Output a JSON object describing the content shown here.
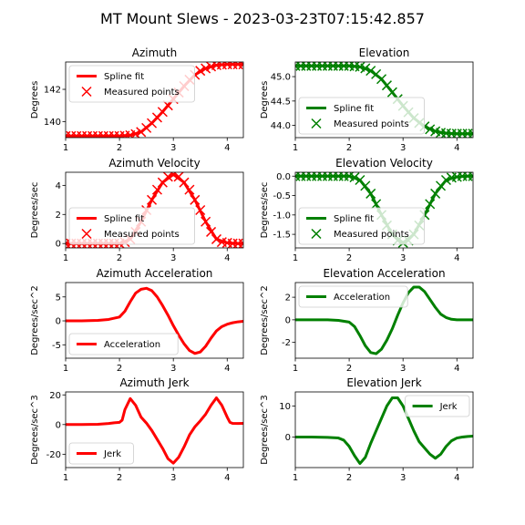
{
  "figure_title": "MT Mount Slews - 2023-03-23T07:15:42.857",
  "colors": {
    "azimuth": "#ff0000",
    "elevation": "#008000"
  },
  "chart_data": [
    {
      "type": "line",
      "title": "Azimuth",
      "ylabel": "Degrees",
      "xlim": [
        1,
        4.3
      ],
      "ylim": [
        139.0,
        143.7
      ],
      "xticks": [
        1,
        2,
        3,
        4
      ],
      "yticks": [
        140,
        142
      ],
      "legend": "upper-left",
      "series": [
        {
          "name": "Spline fit",
          "color": "#ff0000",
          "style": "line",
          "x": [
            1.0,
            1.5,
            2.0,
            2.2,
            2.4,
            2.6,
            2.8,
            3.0,
            3.2,
            3.4,
            3.6,
            3.8,
            4.0,
            4.2,
            4.3
          ],
          "y": [
            139.1,
            139.1,
            139.1,
            139.15,
            139.35,
            139.9,
            140.6,
            141.4,
            142.2,
            142.9,
            143.3,
            143.5,
            143.55,
            143.55,
            143.55
          ]
        },
        {
          "name": "Measured points",
          "color": "#ff0000",
          "style": "x",
          "x": [
            1.0,
            1.1,
            1.2,
            1.3,
            1.4,
            1.5,
            1.6,
            1.7,
            1.8,
            1.9,
            2.0,
            2.1,
            2.2,
            2.3,
            2.4,
            2.5,
            2.6,
            2.7,
            2.8,
            2.9,
            3.0,
            3.1,
            3.2,
            3.3,
            3.4,
            3.5,
            3.6,
            3.7,
            3.8,
            3.9,
            4.0,
            4.1,
            4.2,
            4.3
          ],
          "y": [
            139.1,
            139.1,
            139.1,
            139.1,
            139.1,
            139.1,
            139.1,
            139.1,
            139.1,
            139.1,
            139.1,
            139.12,
            139.15,
            139.22,
            139.35,
            139.6,
            139.9,
            140.25,
            140.6,
            141.0,
            141.4,
            141.8,
            142.2,
            142.6,
            142.9,
            143.15,
            143.3,
            143.42,
            143.5,
            143.53,
            143.55,
            143.55,
            143.55,
            143.55
          ]
        }
      ]
    },
    {
      "type": "line",
      "title": "Elevation",
      "ylabel": "Degrees",
      "xlim": [
        1,
        4.3
      ],
      "ylim": [
        43.75,
        45.3
      ],
      "xticks": [
        1,
        2,
        3,
        4
      ],
      "yticks": [
        44.0,
        44.5,
        45.0
      ],
      "legend": "lower-left",
      "series": [
        {
          "name": "Spline fit",
          "color": "#008000",
          "style": "line",
          "x": [
            1.0,
            1.5,
            2.0,
            2.2,
            2.4,
            2.6,
            2.8,
            3.0,
            3.2,
            3.4,
            3.6,
            3.8,
            4.0,
            4.3
          ],
          "y": [
            45.22,
            45.22,
            45.22,
            45.2,
            45.12,
            44.95,
            44.68,
            44.4,
            44.15,
            43.98,
            43.88,
            43.84,
            43.83,
            43.83
          ]
        },
        {
          "name": "Measured points",
          "color": "#008000",
          "style": "x",
          "x": [
            1.0,
            1.1,
            1.2,
            1.3,
            1.4,
            1.5,
            1.6,
            1.7,
            1.8,
            1.9,
            2.0,
            2.1,
            2.2,
            2.3,
            2.4,
            2.5,
            2.6,
            2.7,
            2.8,
            2.9,
            3.0,
            3.1,
            3.2,
            3.3,
            3.4,
            3.5,
            3.6,
            3.7,
            3.8,
            3.9,
            4.0,
            4.1,
            4.2,
            4.3
          ],
          "y": [
            45.22,
            45.22,
            45.22,
            45.22,
            45.22,
            45.22,
            45.22,
            45.22,
            45.22,
            45.22,
            45.22,
            45.21,
            45.2,
            45.17,
            45.12,
            45.05,
            44.95,
            44.82,
            44.68,
            44.54,
            44.4,
            44.27,
            44.15,
            44.05,
            43.98,
            43.92,
            43.88,
            43.85,
            43.84,
            43.83,
            43.83,
            43.83,
            43.83,
            43.83
          ]
        }
      ]
    },
    {
      "type": "line",
      "title": "Azimuth Velocity",
      "ylabel": "Degrees/sec",
      "xlim": [
        1,
        4.3
      ],
      "ylim": [
        -0.3,
        4.9
      ],
      "xticks": [
        1,
        2,
        3,
        4
      ],
      "yticks": [
        0,
        2,
        4
      ],
      "legend": "lower-left",
      "series": [
        {
          "name": "Spline fit",
          "color": "#ff0000",
          "style": "line",
          "x": [
            1.0,
            1.5,
            2.0,
            2.2,
            2.4,
            2.6,
            2.8,
            3.0,
            3.2,
            3.4,
            3.6,
            3.8,
            4.0,
            4.2,
            4.3
          ],
          "y": [
            0,
            0,
            0,
            0.3,
            1.5,
            3.0,
            4.2,
            4.75,
            4.2,
            3.0,
            1.5,
            0.3,
            0.05,
            0,
            0
          ]
        },
        {
          "name": "Measured points",
          "color": "#ff0000",
          "style": "x",
          "x": [
            1.0,
            1.1,
            1.2,
            1.3,
            1.4,
            1.5,
            1.6,
            1.7,
            1.8,
            1.9,
            2.0,
            2.1,
            2.2,
            2.3,
            2.4,
            2.5,
            2.6,
            2.7,
            2.8,
            2.9,
            3.0,
            3.1,
            3.2,
            3.3,
            3.4,
            3.5,
            3.6,
            3.7,
            3.8,
            3.9,
            4.0,
            4.1,
            4.2,
            4.3
          ],
          "y": [
            0,
            0,
            0,
            0,
            0,
            0,
            0,
            0,
            0,
            0,
            0,
            0.1,
            0.3,
            0.8,
            1.5,
            2.3,
            3.0,
            3.7,
            4.2,
            4.6,
            4.75,
            4.6,
            4.2,
            3.7,
            3.0,
            2.3,
            1.5,
            0.8,
            0.3,
            0.1,
            0.05,
            0,
            0,
            0
          ]
        }
      ]
    },
    {
      "type": "line",
      "title": "Elevation Velocity",
      "ylabel": "Degrees/sec",
      "xlim": [
        1,
        4.3
      ],
      "ylim": [
        -1.85,
        0.1
      ],
      "xticks": [
        1,
        2,
        3,
        4
      ],
      "yticks": [
        0.0,
        -0.5,
        -1.0,
        -1.5
      ],
      "legend": "lower-left",
      "series": [
        {
          "name": "Spline fit",
          "color": "#008000",
          "style": "line",
          "x": [
            1.0,
            1.5,
            2.0,
            2.2,
            2.4,
            2.6,
            2.8,
            3.0,
            3.2,
            3.4,
            3.6,
            3.8,
            4.0,
            4.2,
            4.3
          ],
          "y": [
            0,
            0,
            0,
            -0.1,
            -0.45,
            -1.0,
            -1.5,
            -1.72,
            -1.5,
            -1.0,
            -0.45,
            -0.1,
            -0.02,
            0,
            0
          ]
        },
        {
          "name": "Measured points",
          "color": "#008000",
          "style": "x",
          "x": [
            1.0,
            1.1,
            1.2,
            1.3,
            1.4,
            1.5,
            1.6,
            1.7,
            1.8,
            1.9,
            2.0,
            2.1,
            2.2,
            2.3,
            2.4,
            2.5,
            2.6,
            2.7,
            2.8,
            2.9,
            3.0,
            3.1,
            3.2,
            3.3,
            3.4,
            3.5,
            3.6,
            3.7,
            3.8,
            3.9,
            4.0,
            4.1,
            4.2,
            4.3
          ],
          "y": [
            0,
            0,
            0,
            0,
            0,
            0,
            0,
            0,
            0,
            0,
            0,
            -0.03,
            -0.1,
            -0.25,
            -0.45,
            -0.72,
            -1.0,
            -1.27,
            -1.5,
            -1.66,
            -1.72,
            -1.66,
            -1.5,
            -1.27,
            -1.0,
            -0.72,
            -0.45,
            -0.25,
            -0.1,
            -0.04,
            -0.02,
            0,
            0,
            0
          ]
        }
      ]
    },
    {
      "type": "line",
      "title": "Azimuth Acceleration",
      "ylabel": "Degrees/sec^2",
      "xlim": [
        1,
        4.3
      ],
      "ylim": [
        -7.8,
        8.0
      ],
      "xticks": [
        1,
        2,
        3,
        4
      ],
      "yticks": [
        -5,
        0,
        5
      ],
      "legend": "lower-left",
      "series": [
        {
          "name": "Acceleration",
          "color": "#ff0000",
          "style": "line",
          "x": [
            1.0,
            1.3,
            1.6,
            1.8,
            2.0,
            2.1,
            2.2,
            2.3,
            2.4,
            2.5,
            2.6,
            2.7,
            2.8,
            2.9,
            3.0,
            3.1,
            3.2,
            3.3,
            3.4,
            3.5,
            3.6,
            3.7,
            3.8,
            3.9,
            4.0,
            4.1,
            4.2,
            4.3
          ],
          "y": [
            0,
            0,
            0.1,
            0.3,
            0.8,
            2.0,
            4.0,
            5.8,
            6.6,
            6.8,
            6.3,
            5.0,
            3.2,
            1.2,
            -1.0,
            -3.0,
            -4.8,
            -6.2,
            -6.8,
            -6.5,
            -5.3,
            -3.6,
            -2.1,
            -1.2,
            -0.7,
            -0.4,
            -0.2,
            -0.1
          ]
        }
      ]
    },
    {
      "type": "line",
      "title": "Elevation Acceleration",
      "ylabel": "Degrees/sec^2",
      "xlim": [
        1,
        4.3
      ],
      "ylim": [
        -3.4,
        3.3
      ],
      "xticks": [
        1,
        2,
        3,
        4
      ],
      "yticks": [
        -2,
        0,
        2
      ],
      "legend": "upper-left",
      "series": [
        {
          "name": "Acceleration",
          "color": "#008000",
          "style": "line",
          "x": [
            1.0,
            1.3,
            1.6,
            1.8,
            2.0,
            2.1,
            2.2,
            2.3,
            2.4,
            2.5,
            2.6,
            2.7,
            2.8,
            2.9,
            3.0,
            3.1,
            3.2,
            3.3,
            3.4,
            3.5,
            3.6,
            3.7,
            3.8,
            3.9,
            4.0,
            4.1,
            4.2,
            4.3
          ],
          "y": [
            0,
            0,
            0,
            -0.05,
            -0.2,
            -0.6,
            -1.4,
            -2.3,
            -2.9,
            -3.0,
            -2.6,
            -1.8,
            -0.8,
            0.4,
            1.5,
            2.4,
            2.9,
            2.9,
            2.5,
            1.8,
            1.1,
            0.5,
            0.2,
            0.05,
            0,
            0,
            0,
            0
          ]
        }
      ]
    },
    {
      "type": "line",
      "title": "Azimuth Jerk",
      "ylabel": "Degrees/sec^3",
      "xlim": [
        1,
        4.3
      ],
      "ylim": [
        -29,
        22
      ],
      "xticks": [
        1,
        2,
        3,
        4
      ],
      "yticks": [
        -20,
        0,
        20
      ],
      "legend": "lower-left",
      "series": [
        {
          "name": "Jerk",
          "color": "#ff0000",
          "style": "line",
          "x": [
            1.0,
            1.3,
            1.6,
            1.8,
            1.9,
            2.0,
            2.05,
            2.1,
            2.2,
            2.3,
            2.4,
            2.5,
            2.6,
            2.7,
            2.8,
            2.9,
            3.0,
            3.1,
            3.2,
            3.3,
            3.4,
            3.5,
            3.6,
            3.7,
            3.8,
            3.9,
            4.0,
            4.05,
            4.1,
            4.2,
            4.3
          ],
          "y": [
            0,
            0,
            0.2,
            0.7,
            1.2,
            1.5,
            3.0,
            10.0,
            17.5,
            13.0,
            5.0,
            1.0,
            -4.0,
            -10.0,
            -16.0,
            -23.0,
            -26.0,
            -22.0,
            -15.0,
            -7.0,
            -1.5,
            2.5,
            7.0,
            13.0,
            18.0,
            13.0,
            5.0,
            1.5,
            0.8,
            0.7,
            0.8
          ]
        }
      ]
    },
    {
      "type": "line",
      "title": "Elevation Jerk",
      "ylabel": "Degrees/sec^3",
      "xlim": [
        1,
        4.3
      ],
      "ylim": [
        -9.8,
        14.5
      ],
      "xticks": [
        1,
        2,
        3,
        4
      ],
      "yticks": [
        0,
        10
      ],
      "legend": "upper-right",
      "series": [
        {
          "name": "Jerk",
          "color": "#008000",
          "style": "line",
          "x": [
            1.0,
            1.3,
            1.6,
            1.8,
            1.9,
            2.0,
            2.1,
            2.2,
            2.3,
            2.4,
            2.5,
            2.6,
            2.7,
            2.8,
            2.9,
            3.0,
            3.1,
            3.2,
            3.3,
            3.4,
            3.5,
            3.6,
            3.7,
            3.8,
            3.9,
            4.0,
            4.1,
            4.2,
            4.3
          ],
          "y": [
            0,
            0,
            -0.1,
            -0.3,
            -1.0,
            -3.0,
            -6.0,
            -8.5,
            -6.5,
            -2.0,
            2.0,
            6.0,
            10.0,
            12.6,
            12.6,
            10.0,
            6.0,
            2.0,
            -1.5,
            -3.5,
            -5.5,
            -6.8,
            -5.5,
            -3.0,
            -1.2,
            -0.3,
            0,
            0.2,
            0.3
          ]
        }
      ]
    }
  ]
}
